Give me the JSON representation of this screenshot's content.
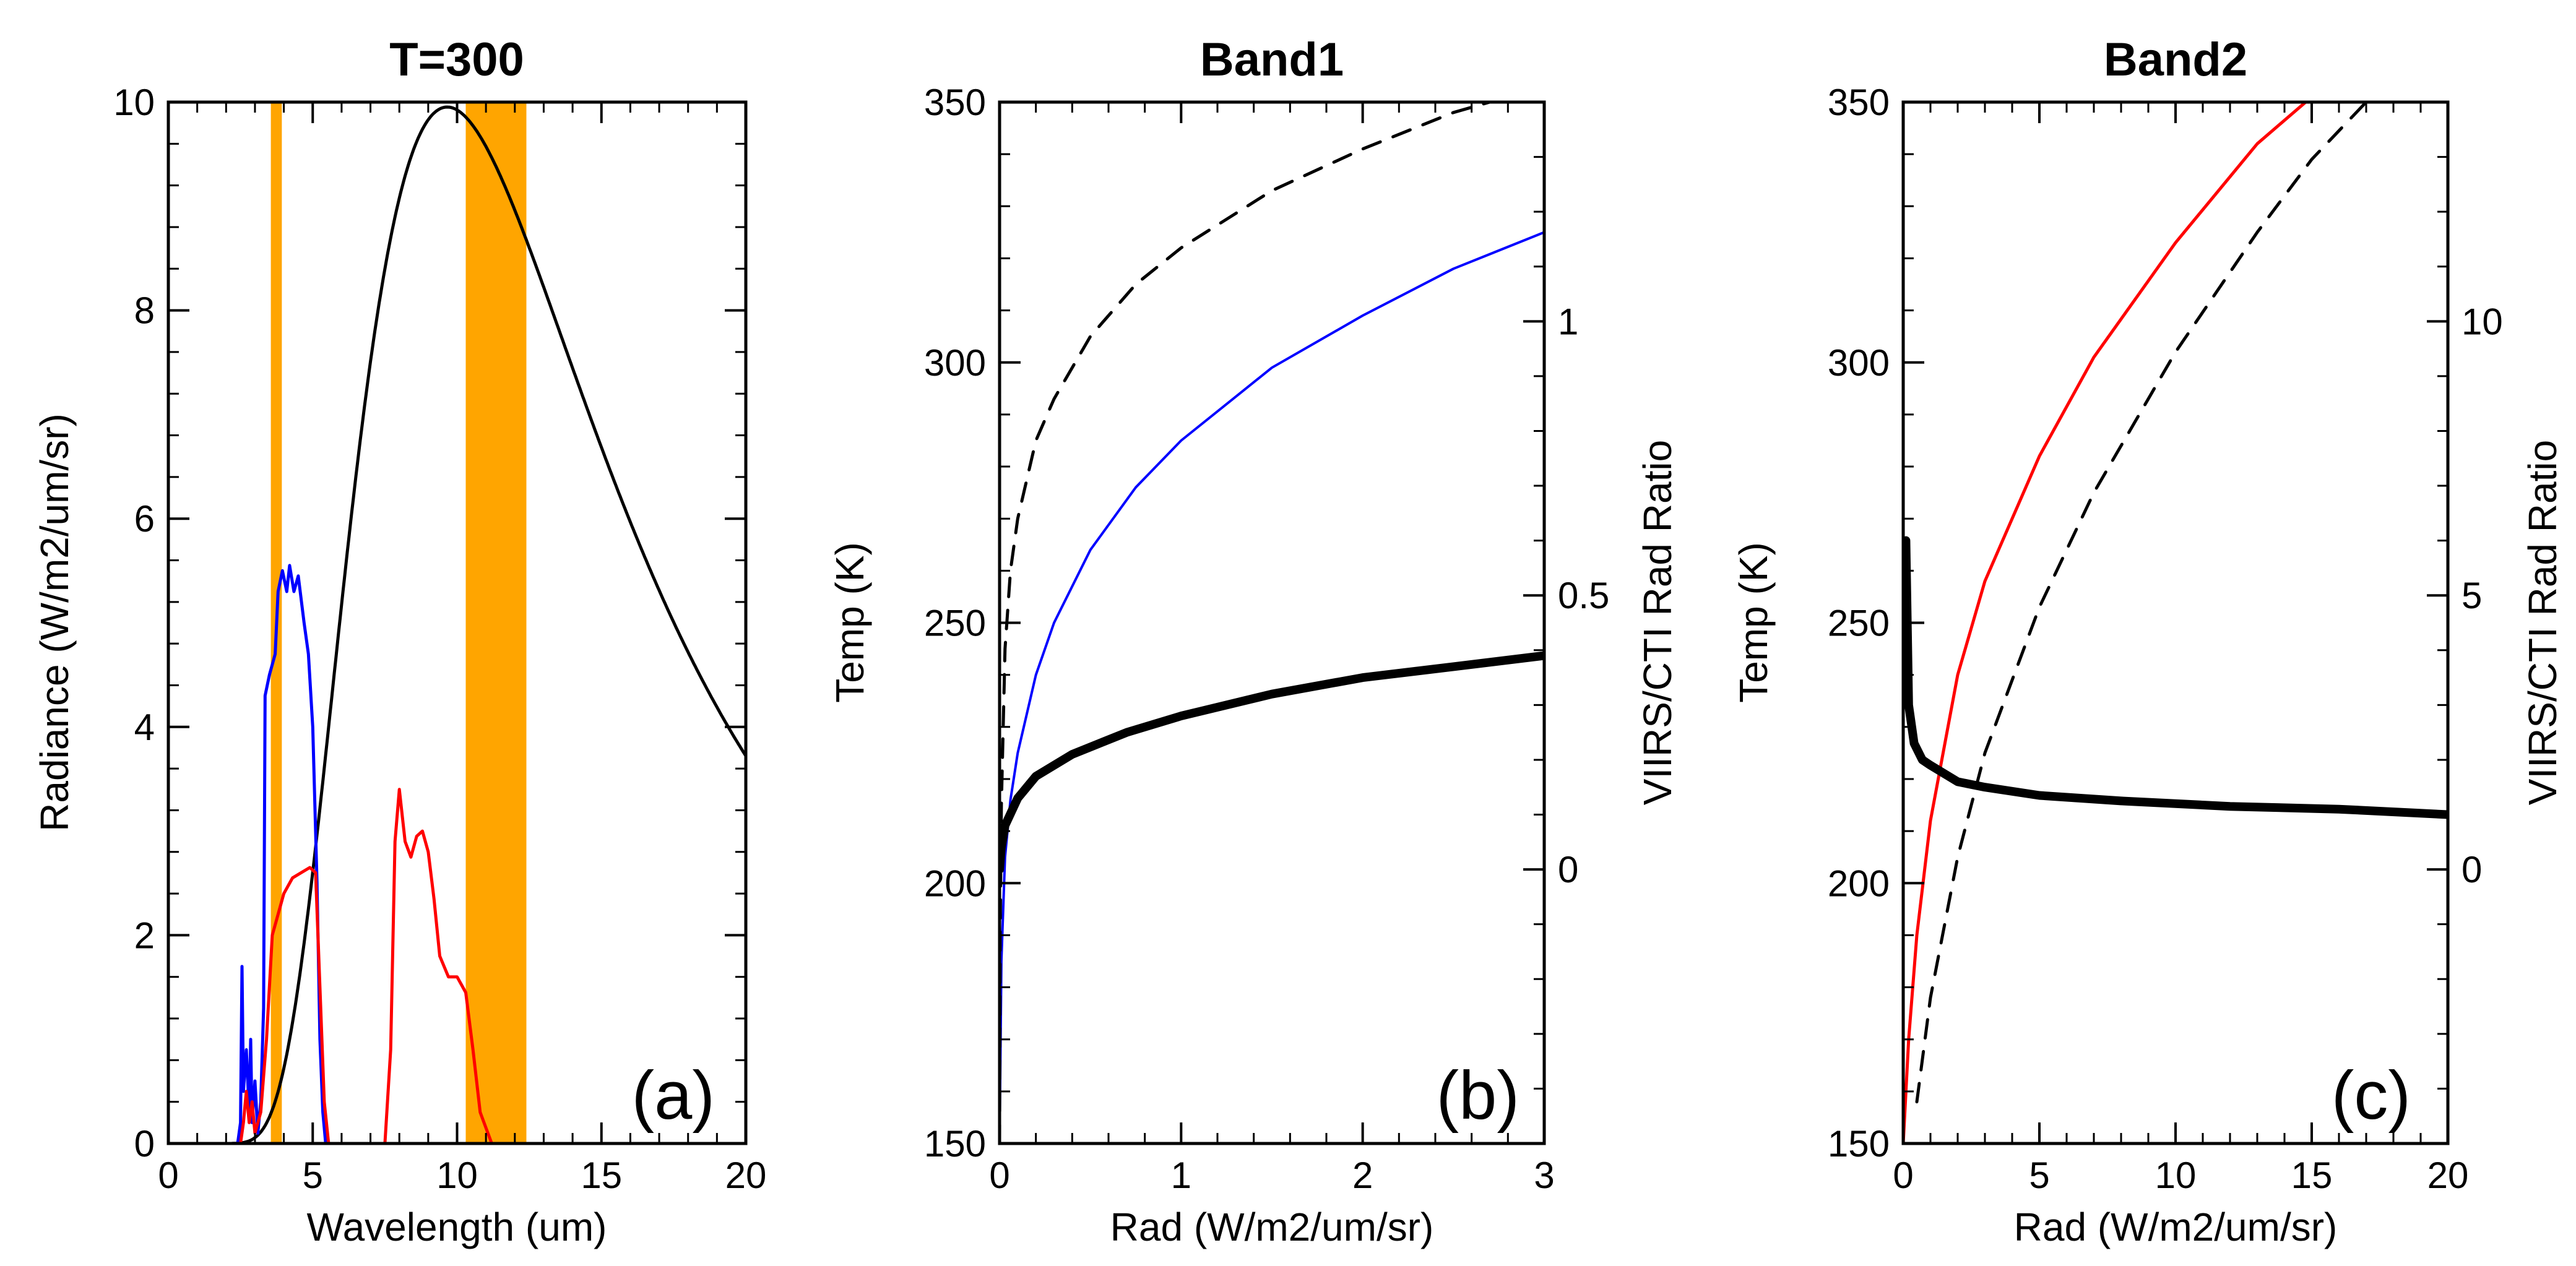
{
  "chart_data": [
    {
      "type": "line",
      "panel": "a",
      "title": "T=300",
      "xlabel": "Wavelength (um)",
      "ylabel": "Radiance (W/m2/um/sr)",
      "xlim": [
        0,
        20
      ],
      "ylim": [
        0,
        10
      ],
      "xticks": [
        0,
        5,
        10,
        15,
        20
      ],
      "yticks": [
        0,
        2,
        4,
        6,
        8,
        10
      ],
      "panel_label": "(a)",
      "bands": [
        {
          "name": "band1",
          "x0": 3.55,
          "x1": 3.93,
          "color": "#FFA500"
        },
        {
          "name": "band2",
          "x0": 10.3,
          "x1": 12.4,
          "color": "#FFA500"
        }
      ],
      "series": [
        {
          "name": "Planck curve T=300",
          "color": "#000000",
          "kind": "planck",
          "temperature": 300,
          "x_range": [
            2.2,
            20
          ]
        },
        {
          "name": "Blue response",
          "color": "#0000FF",
          "points": [
            [
              0,
              0
            ],
            [
              2.4,
              0
            ],
            [
              2.5,
              0.2
            ],
            [
              2.55,
              1.7
            ],
            [
              2.6,
              0.5
            ],
            [
              2.7,
              0.9
            ],
            [
              2.8,
              0.3
            ],
            [
              2.85,
              1.0
            ],
            [
              2.9,
              0.2
            ],
            [
              3.0,
              0.6
            ],
            [
              3.1,
              0.1
            ],
            [
              3.2,
              0.4
            ],
            [
              3.3,
              1.3
            ],
            [
              3.35,
              4.3
            ],
            [
              3.5,
              4.5
            ],
            [
              3.7,
              4.7
            ],
            [
              3.8,
              5.3
            ],
            [
              3.95,
              5.5
            ],
            [
              4.1,
              5.3
            ],
            [
              4.2,
              5.55
            ],
            [
              4.35,
              5.3
            ],
            [
              4.5,
              5.45
            ],
            [
              4.7,
              5.0
            ],
            [
              4.85,
              4.7
            ],
            [
              5.0,
              4.0
            ],
            [
              5.15,
              2.5
            ],
            [
              5.25,
              1.0
            ],
            [
              5.35,
              0.3
            ],
            [
              5.45,
              0
            ],
            [
              20,
              0
            ]
          ]
        },
        {
          "name": "Red response",
          "color": "#FF0000",
          "points": [
            [
              0,
              0
            ],
            [
              2.5,
              0
            ],
            [
              2.6,
              0.2
            ],
            [
              2.7,
              0.5
            ],
            [
              2.8,
              0.2
            ],
            [
              2.9,
              0.4
            ],
            [
              3.0,
              0.1
            ],
            [
              3.2,
              0.3
            ],
            [
              3.4,
              1.0
            ],
            [
              3.6,
              2.0
            ],
            [
              3.8,
              2.2
            ],
            [
              4.0,
              2.4
            ],
            [
              4.3,
              2.55
            ],
            [
              4.6,
              2.6
            ],
            [
              4.9,
              2.65
            ],
            [
              5.1,
              2.6
            ],
            [
              5.25,
              1.5
            ],
            [
              5.4,
              0.4
            ],
            [
              5.55,
              0
            ],
            [
              7.5,
              0
            ],
            [
              7.7,
              0.9
            ],
            [
              7.85,
              2.9
            ],
            [
              8.0,
              3.4
            ],
            [
              8.2,
              2.9
            ],
            [
              8.4,
              2.75
            ],
            [
              8.6,
              2.95
            ],
            [
              8.8,
              3.0
            ],
            [
              9.0,
              2.8
            ],
            [
              9.2,
              2.35
            ],
            [
              9.4,
              1.8
            ],
            [
              9.7,
              1.6
            ],
            [
              10.0,
              1.6
            ],
            [
              10.3,
              1.45
            ],
            [
              10.55,
              0.9
            ],
            [
              10.8,
              0.3
            ],
            [
              11.2,
              0
            ],
            [
              20,
              0
            ]
          ]
        }
      ]
    },
    {
      "type": "line",
      "panel": "b",
      "title": "Band1",
      "xlabel": "Rad (W/m2/um/sr)",
      "ylabel": "Temp (K)",
      "y2label": "VIIRS/CTI Rad Ratio",
      "xlim": [
        0,
        3
      ],
      "ylim": [
        150,
        350
      ],
      "y2lim": [
        -0.5,
        1.4
      ],
      "xticks": [
        0,
        1,
        2,
        3
      ],
      "yticks": [
        150,
        200,
        250,
        300,
        350
      ],
      "y2ticks": [
        0,
        0.5,
        1
      ],
      "y2ticklabels": [
        "0",
        "0.5",
        "1"
      ],
      "panel_label": "(b)",
      "series": [
        {
          "name": "Blue temperature curve",
          "color": "#0000FF",
          "axis": "left",
          "width": 4,
          "dash": "",
          "points": [
            [
              0,
              150
            ],
            [
              0.01,
              185
            ],
            [
              0.03,
              205
            ],
            [
              0.06,
              216
            ],
            [
              0.1,
              225
            ],
            [
              0.2,
              240
            ],
            [
              0.3,
              250
            ],
            [
              0.5,
              264
            ],
            [
              0.75,
              276
            ],
            [
              1.0,
              285
            ],
            [
              1.5,
              299
            ],
            [
              2.0,
              309
            ],
            [
              2.5,
              318
            ],
            [
              3.0,
              325
            ]
          ]
        },
        {
          "name": "Dashed temperature curve",
          "color": "#000000",
          "axis": "left",
          "width": 5,
          "dash": "30,22",
          "points": [
            [
              0,
              150
            ],
            [
              0.003,
              190
            ],
            [
              0.01,
              215
            ],
            [
              0.03,
              245
            ],
            [
              0.06,
              260
            ],
            [
              0.1,
              270
            ],
            [
              0.2,
              285
            ],
            [
              0.3,
              293
            ],
            [
              0.5,
              305
            ],
            [
              0.75,
              315
            ],
            [
              1.0,
              322
            ],
            [
              1.5,
              333
            ],
            [
              2.0,
              341
            ],
            [
              2.5,
              348
            ],
            [
              2.7,
              350
            ]
          ]
        },
        {
          "name": "Rad ratio",
          "color": "#000000",
          "axis": "right",
          "width": 14,
          "dash": "",
          "points": [
            [
              0,
              0
            ],
            [
              0.01,
              0.04
            ],
            [
              0.03,
              0.08
            ],
            [
              0.1,
              0.13
            ],
            [
              0.2,
              0.17
            ],
            [
              0.4,
              0.21
            ],
            [
              0.7,
              0.25
            ],
            [
              1.0,
              0.28
            ],
            [
              1.5,
              0.32
            ],
            [
              2.0,
              0.35
            ],
            [
              2.5,
              0.37
            ],
            [
              3.0,
              0.39
            ]
          ]
        }
      ]
    },
    {
      "type": "line",
      "panel": "c",
      "title": "Band2",
      "xlabel": "Rad (W/m2/um/sr)",
      "ylabel": "Temp (K)",
      "y2label": "VIIRS/CTI Rad Ratio",
      "xlim": [
        0,
        20
      ],
      "ylim": [
        150,
        350
      ],
      "y2lim": [
        -5,
        14
      ],
      "xticks": [
        0,
        5,
        10,
        15,
        20
      ],
      "yticks": [
        150,
        200,
        250,
        300,
        350
      ],
      "y2ticks": [
        0,
        5,
        10
      ],
      "y2ticklabels": [
        "0",
        "5",
        "10"
      ],
      "panel_label": "(c)",
      "series": [
        {
          "name": "Red temperature curve",
          "color": "#FF0000",
          "axis": "left",
          "width": 5,
          "dash": "",
          "points": [
            [
              0,
              150
            ],
            [
              0.2,
              170
            ],
            [
              0.5,
              190
            ],
            [
              1,
              212
            ],
            [
              2,
              240
            ],
            [
              3,
              258
            ],
            [
              5,
              282
            ],
            [
              7,
              301
            ],
            [
              10,
              323
            ],
            [
              13,
              342
            ],
            [
              15,
              351
            ]
          ]
        },
        {
          "name": "Dashed temperature curve",
          "color": "#000000",
          "axis": "left",
          "width": 5,
          "dash": "30,22",
          "points": [
            [
              0.5,
              158
            ],
            [
              1,
              178
            ],
            [
              2,
              205
            ],
            [
              3,
              225
            ],
            [
              5,
              253
            ],
            [
              7,
              275
            ],
            [
              10,
              302
            ],
            [
              13,
              325
            ],
            [
              15,
              339
            ],
            [
              17,
              350
            ]
          ]
        },
        {
          "name": "Rad ratio",
          "color": "#000000",
          "axis": "right",
          "width": 14,
          "dash": "",
          "points": [
            [
              0.1,
              6
            ],
            [
              0.2,
              3
            ],
            [
              0.4,
              2.3
            ],
            [
              0.7,
              2.0
            ],
            [
              1,
              1.9
            ],
            [
              2,
              1.6
            ],
            [
              3,
              1.5
            ],
            [
              5,
              1.35
            ],
            [
              8,
              1.25
            ],
            [
              12,
              1.15
            ],
            [
              16,
              1.1
            ],
            [
              20,
              1.0
            ]
          ]
        }
      ]
    }
  ]
}
